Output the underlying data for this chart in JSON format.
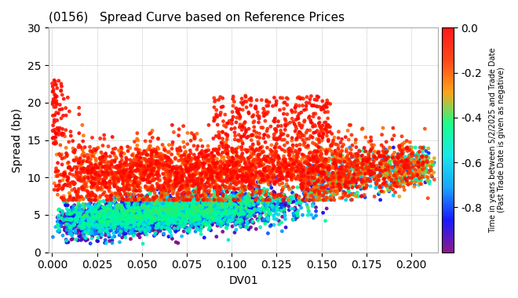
{
  "title": "(0156)   Spread Curve based on Reference Prices",
  "xlabel": "DV01",
  "ylabel": "Spread (bp)",
  "xlim": [
    -0.002,
    0.215
  ],
  "ylim": [
    0,
    30
  ],
  "yticks": [
    0,
    5,
    10,
    15,
    20,
    25,
    30
  ],
  "xticks": [
    0.0,
    0.025,
    0.05,
    0.075,
    0.1,
    0.125,
    0.15,
    0.175,
    0.2
  ],
  "colorbar_label": "Time in years between 5/2/2025 and Trade Date\n(Past Trade Date is given as negative)",
  "cmap": "gist_heat_r",
  "clim": [
    -1.0,
    0.0
  ],
  "colorbar_ticks": [
    0.0,
    -0.2,
    -0.4,
    -0.6,
    -0.8
  ],
  "seed": 12345,
  "n_points": 8000,
  "background_color": "#ffffff",
  "grid_color": "#888888",
  "grid_style": ":"
}
